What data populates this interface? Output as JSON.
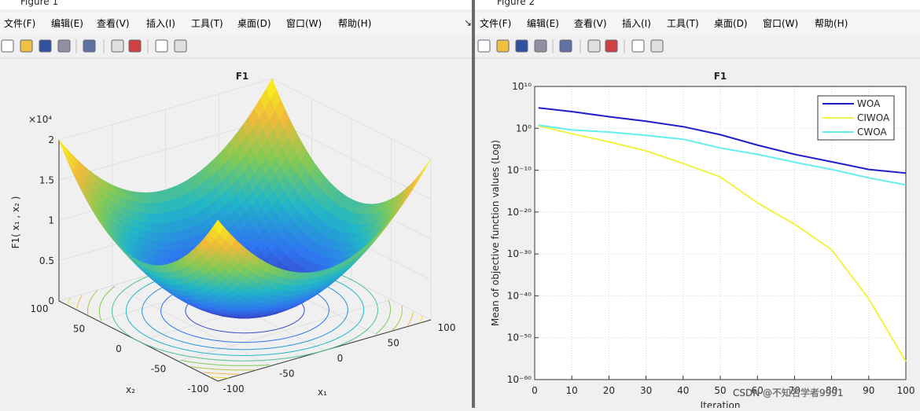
{
  "windows": [
    {
      "title": "Figure 1",
      "menu": [
        "文件(F)",
        "编辑(E)",
        "查看(V)",
        "插入(I)",
        "工具(T)",
        "桌面(D)",
        "窗口(W)",
        "帮助(H)"
      ]
    },
    {
      "title": "Figure 2",
      "menu": [
        "文件(F)",
        "编辑(E)",
        "查看(V)",
        "插入(I)",
        "工具(T)",
        "桌面(D)",
        "窗口(W)",
        "帮助(H)"
      ]
    }
  ],
  "watermark": "CSDN @不知名学者9991",
  "chart_data": [
    {
      "type": "surface",
      "title": "F1",
      "xlabel": "x₁",
      "ylabel": "x₂",
      "zlabel": "F1( x₁ , x₂ )",
      "zexponent": "×10⁴",
      "xlim": [
        -100,
        100
      ],
      "ylim": [
        -100,
        100
      ],
      "zlim": [
        0,
        2
      ],
      "xticks": [
        -100,
        -50,
        0,
        50,
        100
      ],
      "yticks": [
        -100,
        -50,
        0,
        50,
        100
      ],
      "zticks": [
        0,
        0.5,
        1,
        1.5,
        2
      ],
      "colormap": [
        "#3e26a8",
        "#2f74f0",
        "#21b7c7",
        "#82ca55",
        "#f0ba3b",
        "#f9fb15"
      ]
    },
    {
      "type": "line",
      "title": "F1",
      "xlabel": "Iteration",
      "ylabel": "Mean of objective function values (Log)",
      "log_y": true,
      "grid": true,
      "legend": "northeast",
      "x": [
        1,
        10,
        20,
        30,
        40,
        50,
        60,
        70,
        80,
        90,
        100
      ],
      "xlim": [
        0,
        100
      ],
      "xticks": [
        0,
        10,
        20,
        30,
        40,
        50,
        60,
        70,
        80,
        90,
        100
      ],
      "ylim": [
        1e-60,
        10000000000.0
      ],
      "yticks": [
        {
          "value": 10000000000.0,
          "label": "10¹⁰"
        },
        {
          "value": 1,
          "label": "10⁰"
        },
        {
          "value": 1e-10,
          "label": "10⁻¹⁰"
        },
        {
          "value": 1e-20,
          "label": "10⁻²⁰"
        },
        {
          "value": 1e-30,
          "label": "10⁻³⁰"
        },
        {
          "value": 1e-40,
          "label": "10⁻⁴⁰"
        },
        {
          "value": 1e-50,
          "label": "10⁻⁵⁰"
        },
        {
          "value": 1e-60,
          "label": "10⁻⁶⁰"
        }
      ],
      "series": [
        {
          "name": "WOA",
          "color": "#2020c8",
          "values": [
            80000.0,
            10000.0,
            600.0,
            50.0,
            2.5,
            0.03,
            0.0001,
            6e-07,
            1e-08,
            1.5e-10,
            2e-11
          ]
        },
        {
          "name": "CIWOA",
          "color": "#f2f244",
          "values": [
            4,
            0.05,
            0.0006,
            4e-06,
            4e-09,
            2.5e-12,
            1.6e-18,
            1.3e-23,
            1e-29,
            2e-41,
            2e-56
          ]
        },
        {
          "name": "CWOA",
          "color": "#66eeee",
          "values": [
            5.6,
            0.4,
            0.13,
            0.02,
            0.0025,
            2e-05,
            6e-07,
            8e-09,
            1.5e-10,
            1.5e-12,
            3e-14
          ]
        }
      ]
    }
  ]
}
